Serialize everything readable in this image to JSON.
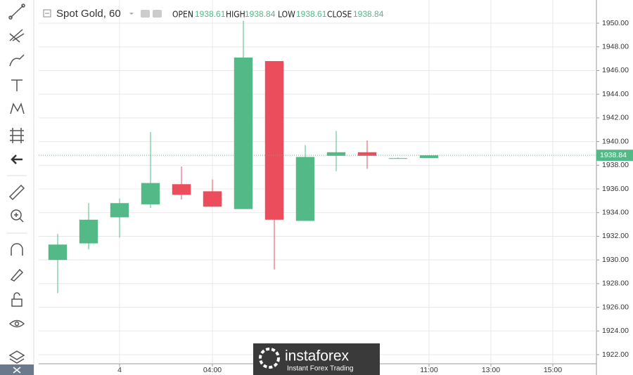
{
  "chart_data": {
    "type": "candlestick",
    "title": "Spot Gold, 60",
    "ohlc_legend": [
      {
        "label": "OPEN",
        "value": 1938.61
      },
      {
        "label": "HIGH",
        "value": 1938.84
      },
      {
        "label": "LOW",
        "value": 1938.61
      },
      {
        "label": "CLOSE",
        "value": 1938.84
      }
    ],
    "x": [
      0,
      1,
      2,
      3,
      4,
      5,
      6,
      7,
      8,
      9,
      10,
      11,
      12
    ],
    "open": [
      1930.0,
      1931.4,
      1933.6,
      1934.7,
      1936.4,
      1935.8,
      1934.3,
      1946.8,
      1933.3,
      1938.8,
      1939.1,
      1938.6,
      1938.61
    ],
    "high": [
      1932.2,
      1934.8,
      1935.2,
      1940.8,
      1937.9,
      1936.8,
      1950.2,
      1946.8,
      1939.7,
      1940.9,
      1940.1,
      1938.65,
      1938.84
    ],
    "low": [
      1927.2,
      1930.9,
      1931.9,
      1934.4,
      1935.1,
      1934.5,
      1934.3,
      1929.2,
      1933.3,
      1937.5,
      1937.7,
      1938.55,
      1938.61
    ],
    "close": [
      1931.3,
      1933.4,
      1934.8,
      1936.5,
      1935.5,
      1934.5,
      1947.1,
      1933.4,
      1938.7,
      1939.1,
      1938.8,
      1938.6,
      1938.84
    ],
    "up_color": "#53b987",
    "down_color": "#eb4d5c",
    "last_price": 1938.84,
    "xlim": [
      -0.614,
      17.41
    ],
    "xticks": [
      {
        "value": 2,
        "label": "4"
      },
      {
        "value": 5,
        "label": "04:00"
      },
      {
        "value": 12,
        "label": "11:00"
      },
      {
        "value": 14,
        "label": "13:00"
      },
      {
        "value": 16,
        "label": "15:00"
      }
    ],
    "ylim": [
      1921.23,
      1951.96
    ],
    "yticks": [
      {
        "value": 1922,
        "label": "1922.00"
      },
      {
        "value": 1924,
        "label": "1924.00"
      },
      {
        "value": 1926,
        "label": "1926.00"
      },
      {
        "value": 1928,
        "label": "1928.00"
      },
      {
        "value": 1930,
        "label": "1930.00"
      },
      {
        "value": 1932,
        "label": "1932.00"
      },
      {
        "value": 1934,
        "label": "1934.00"
      },
      {
        "value": 1936,
        "label": "1936.00"
      },
      {
        "value": 1938,
        "label": "1938.00"
      },
      {
        "value": 1940,
        "label": "1940.00"
      },
      {
        "value": 1942,
        "label": "1942.00"
      },
      {
        "value": 1944,
        "label": "1944.00"
      },
      {
        "value": 1946,
        "label": "1946.00"
      },
      {
        "value": 1948,
        "label": "1948.00"
      },
      {
        "value": 1950,
        "label": "1950.00"
      }
    ],
    "grid": true
  },
  "watermark": {
    "brand": "instaforex",
    "tagline": "Instant Forex Trading"
  }
}
